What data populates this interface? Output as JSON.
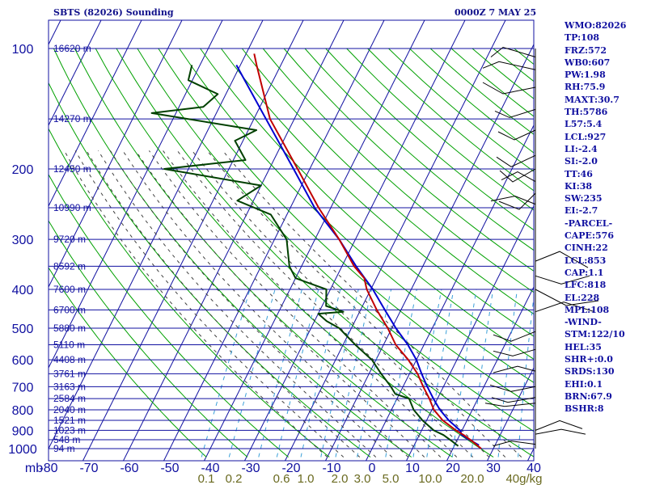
{
  "title": "SBTS (82026) Sounding",
  "datetime": "0000Z  7 MAY 25",
  "indices": [
    "WMO:82026",
    "TP:108",
    "FRZ:572",
    "WB0:607",
    "PW:1.98",
    "RH:75.9",
    "MAXT:30.7",
    "TH:5786",
    "L57:5.4",
    "LCL:927",
    "LI:-2.4",
    "SI:-2.0",
    "TT:46",
    "KI:38",
    "SW:235",
    "EI:-2.7",
    "-PARCEL-",
    "CAPE:576",
    "CINH:22",
    "LCL:853",
    "CAP:1.1",
    "LFC:818",
    "EL:228",
    "MPL:108",
    "-WIND-",
    "STM:122/10",
    "HEL:35",
    "SHR+:0.0",
    "SRDS:130",
    "EHI:0.1",
    "BRN:67.9",
    "BSHR:8"
  ],
  "colors": {
    "grid": "#1010a0",
    "dry_adiabat": "#00a000",
    "moist_adiabat": "#404040",
    "mixing_ratio": "#3aa0d8",
    "temperature": "#c00000",
    "dewpoint": "#004000",
    "parcel": "#0000d0",
    "wind": "#000000",
    "text": "#10108a"
  },
  "chart_data": {
    "type": "skew-t",
    "title": "SBTS (82026) Sounding",
    "ylabel": "mb",
    "pressure_ticks": [
      "100",
      "200",
      "300",
      "400",
      "500",
      "600",
      "700",
      "800",
      "900",
      "1000"
    ],
    "temperature_ticks": [
      "-80",
      "-70",
      "-60",
      "-50",
      "-40",
      "-30",
      "-20",
      "-10",
      "0",
      "10",
      "20",
      "30",
      "40"
    ],
    "mixing_ratio_labels": [
      "0.1",
      "0.2",
      "0.6",
      "1.0",
      "2.0",
      "3.0",
      "5.0",
      "10.0",
      "20.0",
      "40g/kg"
    ],
    "height_labels": [
      {
        "p": 100,
        "label": "16620 m"
      },
      {
        "p": 150,
        "label": "14270 m"
      },
      {
        "p": 200,
        "label": "12450 m"
      },
      {
        "p": 250,
        "label": "10990 m"
      },
      {
        "p": 300,
        "label": "9720 m"
      },
      {
        "p": 350,
        "label": "8592 m"
      },
      {
        "p": 400,
        "label": "7600 m"
      },
      {
        "p": 450,
        "label": "6700 m"
      },
      {
        "p": 500,
        "label": "5880 m"
      },
      {
        "p": 550,
        "label": "5110 m"
      },
      {
        "p": 600,
        "label": "4408 m"
      },
      {
        "p": 650,
        "label": "3761 m"
      },
      {
        "p": 700,
        "label": "3163 m"
      },
      {
        "p": 750,
        "label": "2584 m"
      },
      {
        "p": 800,
        "label": "2040 m"
      },
      {
        "p": 850,
        "label": "1521 m"
      },
      {
        "p": 900,
        "label": "1023 m"
      },
      {
        "p": 950,
        "label": "548 m"
      },
      {
        "p": 1000,
        "label": "94 m"
      }
    ],
    "temperature_profile": [
      [
        1000,
        27
      ],
      [
        960,
        24
      ],
      [
        925,
        21
      ],
      [
        900,
        18.5
      ],
      [
        850,
        14
      ],
      [
        800,
        10.5
      ],
      [
        750,
        8
      ],
      [
        700,
        5
      ],
      [
        650,
        2
      ],
      [
        600,
        -2
      ],
      [
        550,
        -7
      ],
      [
        500,
        -11
      ],
      [
        450,
        -16
      ],
      [
        400,
        -21
      ],
      [
        375,
        -23
      ],
      [
        350,
        -27
      ],
      [
        300,
        -34
      ],
      [
        250,
        -43
      ],
      [
        200,
        -53
      ],
      [
        150,
        -66
      ],
      [
        110,
        -76
      ],
      [
        103,
        -78
      ]
    ],
    "dewpoint_profile": [
      [
        985,
        21
      ],
      [
        960,
        19
      ],
      [
        925,
        16
      ],
      [
        900,
        13
      ],
      [
        850,
        9
      ],
      [
        800,
        5.5
      ],
      [
        750,
        3
      ],
      [
        730,
        -1
      ],
      [
        700,
        -3
      ],
      [
        650,
        -7
      ],
      [
        600,
        -11
      ],
      [
        550,
        -17
      ],
      [
        500,
        -23
      ],
      [
        480,
        -27
      ],
      [
        460,
        -30
      ],
      [
        455,
        -24
      ],
      [
        440,
        -29
      ],
      [
        400,
        -31
      ],
      [
        375,
        -40
      ],
      [
        350,
        -43
      ],
      [
        300,
        -47
      ],
      [
        260,
        -54
      ],
      [
        240,
        -64
      ],
      [
        220,
        -60
      ],
      [
        200,
        -86
      ],
      [
        190,
        -67
      ],
      [
        170,
        -72
      ],
      [
        160,
        -68
      ],
      [
        145,
        -96
      ],
      [
        140,
        -84
      ],
      [
        130,
        -82
      ],
      [
        120,
        -91
      ],
      [
        110,
        -92
      ]
    ],
    "parcel_profile": [
      [
        980,
        26
      ],
      [
        950,
        23
      ],
      [
        925,
        20.5
      ],
      [
        900,
        19.5
      ],
      [
        850,
        15.5
      ],
      [
        800,
        12
      ],
      [
        750,
        9
      ],
      [
        700,
        6
      ],
      [
        650,
        3
      ],
      [
        600,
        0
      ],
      [
        550,
        -4
      ],
      [
        500,
        -9
      ],
      [
        450,
        -14
      ],
      [
        400,
        -19.5
      ],
      [
        350,
        -26.5
      ],
      [
        300,
        -34
      ],
      [
        250,
        -44
      ],
      [
        200,
        -54
      ],
      [
        150,
        -67
      ],
      [
        110,
        -81
      ]
    ],
    "wind_pressures": [
      105,
      113,
      125,
      142,
      160,
      185,
      200,
      215,
      230,
      245,
      340,
      370,
      400,
      455,
      510,
      565,
      640,
      700,
      745,
      770,
      900,
      920,
      975
    ]
  }
}
